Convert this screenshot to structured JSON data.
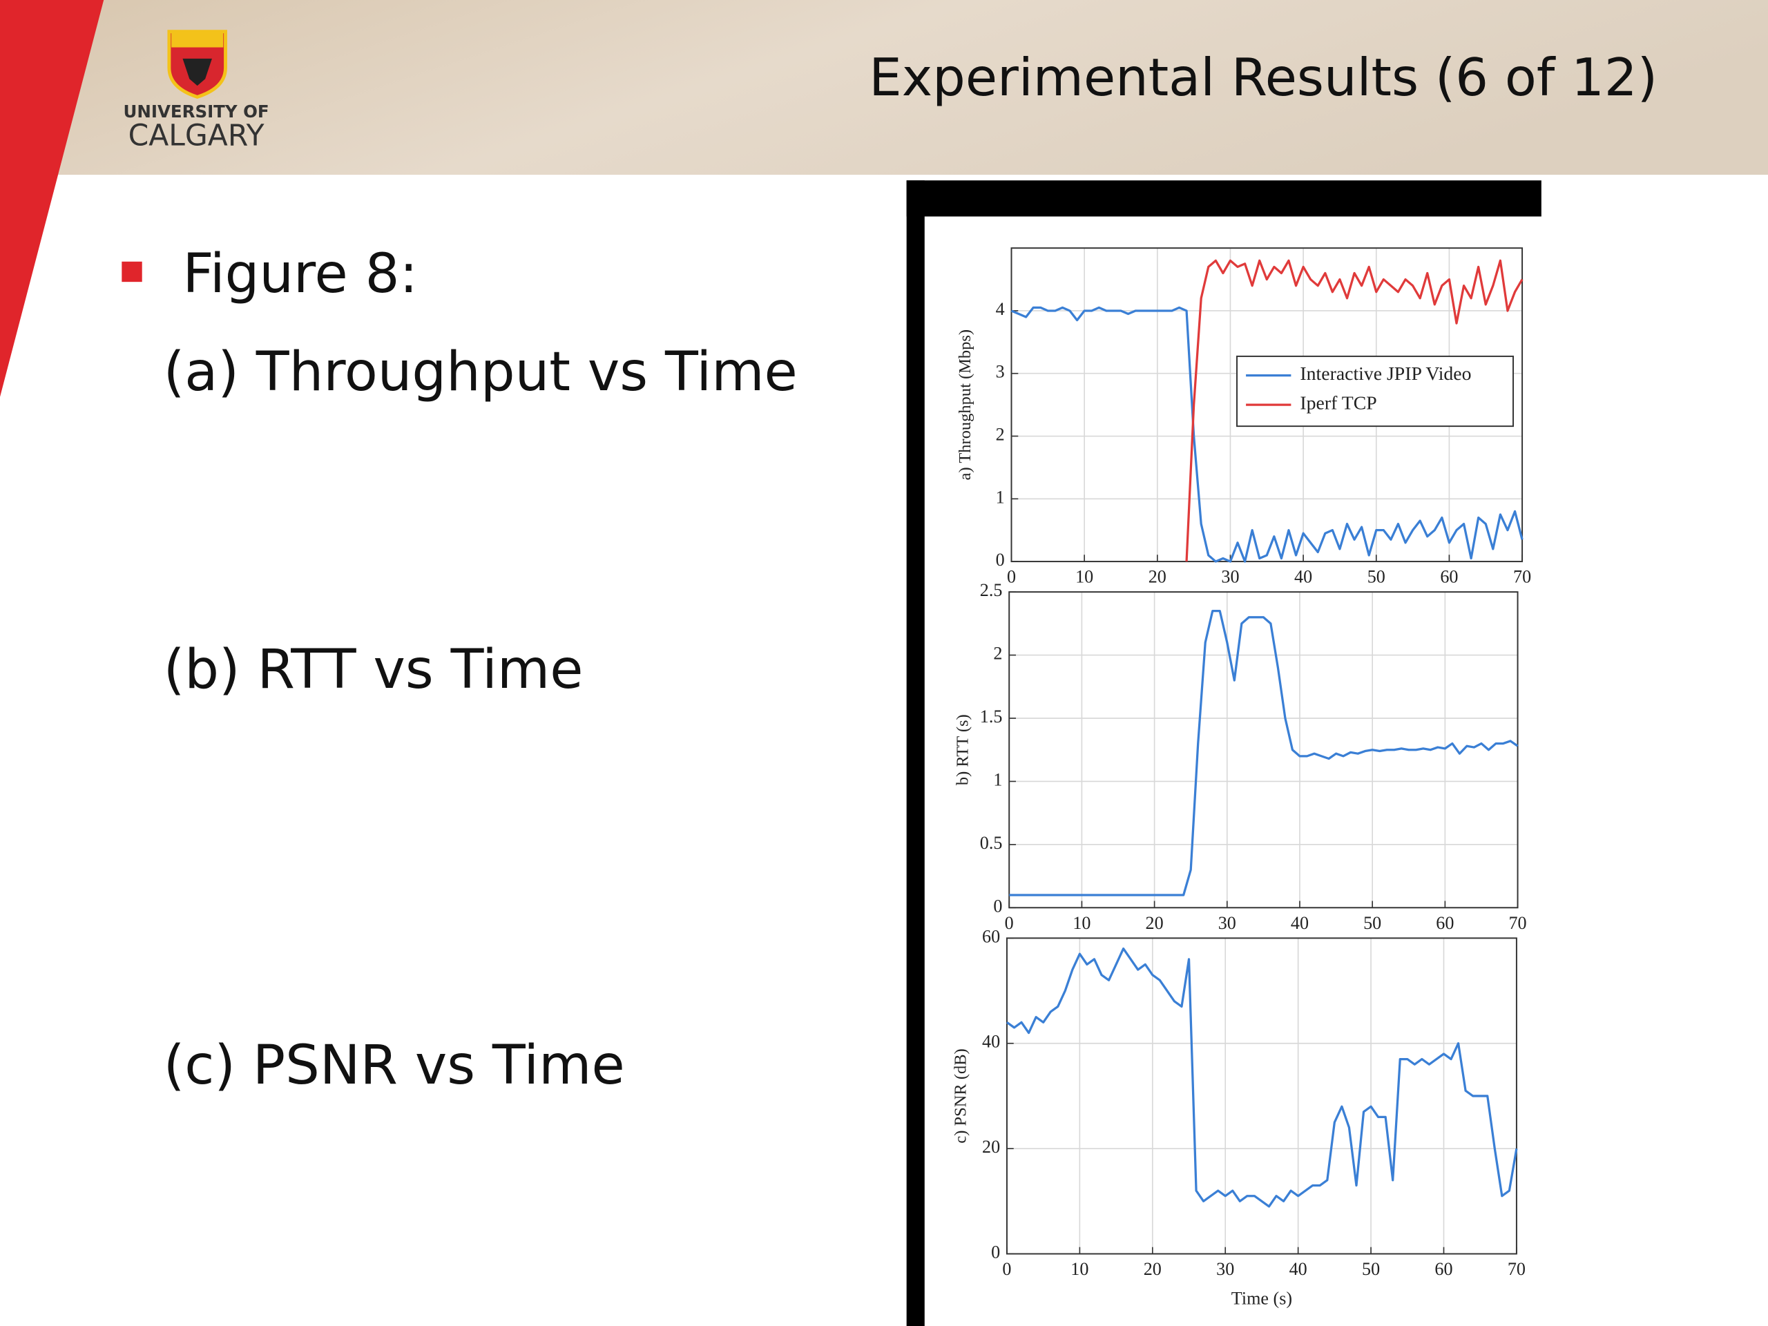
{
  "header": {
    "title": "Experimental Results (6 of 12)",
    "logo_line1": "UNIVERSITY OF",
    "logo_line2": "CALGARY"
  },
  "bullets": [
    "Figure 8:",
    "(a) Throughput vs Time",
    "(b) RTT vs Time",
    "(c) PSNR vs Time"
  ],
  "chart_data": [
    {
      "type": "line",
      "ylabel": "a) Throughput (Mbps)",
      "x": [
        0,
        1,
        2,
        3,
        4,
        5,
        6,
        7,
        8,
        9,
        10,
        11,
        12,
        13,
        14,
        15,
        16,
        17,
        18,
        19,
        20,
        21,
        22,
        23,
        24,
        25,
        26,
        27,
        28,
        29,
        30,
        31,
        32,
        33,
        34,
        35,
        36,
        37,
        38,
        39,
        40,
        41,
        42,
        43,
        44,
        45,
        46,
        47,
        48,
        49,
        50,
        51,
        52,
        53,
        54,
        55,
        56,
        57,
        58,
        59,
        60,
        61,
        62,
        63,
        64,
        65,
        66,
        67,
        68,
        69,
        70
      ],
      "xlim": [
        0,
        70
      ],
      "xticks": [
        0,
        10,
        20,
        30,
        40,
        50,
        60,
        70
      ],
      "ylim": [
        0,
        5
      ],
      "yticks": [
        0,
        1,
        2,
        3,
        4
      ],
      "grid": true,
      "legend": "center right",
      "series": [
        {
          "name": "Interactive JPIP Video",
          "color": "#3a7fd5",
          "values": [
            4.0,
            3.95,
            3.9,
            4.05,
            4.05,
            4.0,
            4.0,
            4.05,
            4.0,
            3.85,
            4.0,
            4.0,
            4.05,
            4.0,
            4.0,
            4.0,
            3.95,
            4.0,
            4.0,
            4.0,
            4.0,
            4.0,
            4.0,
            4.05,
            4.0,
            2.0,
            0.6,
            0.1,
            0.0,
            0.05,
            0.0,
            0.3,
            0.0,
            0.5,
            0.05,
            0.1,
            0.4,
            0.05,
            0.5,
            0.1,
            0.45,
            0.3,
            0.15,
            0.45,
            0.5,
            0.2,
            0.6,
            0.35,
            0.55,
            0.1,
            0.5,
            0.5,
            0.35,
            0.6,
            0.3,
            0.5,
            0.65,
            0.4,
            0.5,
            0.7,
            0.3,
            0.5,
            0.6,
            0.05,
            0.7,
            0.6,
            0.2,
            0.75,
            0.5,
            0.8,
            0.35
          ]
        },
        {
          "name": "Iperf TCP",
          "color": "#e03a3a",
          "values": [
            null,
            null,
            null,
            null,
            null,
            null,
            null,
            null,
            null,
            null,
            null,
            null,
            null,
            null,
            null,
            null,
            null,
            null,
            null,
            null,
            null,
            null,
            null,
            null,
            0,
            2.5,
            4.2,
            4.7,
            4.8,
            4.6,
            4.8,
            4.7,
            4.75,
            4.4,
            4.8,
            4.5,
            4.7,
            4.6,
            4.8,
            4.4,
            4.7,
            4.5,
            4.4,
            4.6,
            4.3,
            4.5,
            4.2,
            4.6,
            4.4,
            4.7,
            4.3,
            4.5,
            4.4,
            4.3,
            4.5,
            4.4,
            4.2,
            4.6,
            4.1,
            4.4,
            4.5,
            3.8,
            4.4,
            4.2,
            4.7,
            4.1,
            4.4,
            4.8,
            4.0,
            4.3,
            4.5
          ]
        }
      ]
    },
    {
      "type": "line",
      "ylabel": "b) RTT (s)",
      "x": [
        0,
        1,
        2,
        3,
        4,
        5,
        6,
        7,
        8,
        9,
        10,
        11,
        12,
        13,
        14,
        15,
        16,
        17,
        18,
        19,
        20,
        21,
        22,
        23,
        24,
        25,
        26,
        27,
        28,
        29,
        30,
        31,
        32,
        33,
        34,
        35,
        36,
        37,
        38,
        39,
        40,
        41,
        42,
        43,
        44,
        45,
        46,
        47,
        48,
        49,
        50,
        51,
        52,
        53,
        54,
        55,
        56,
        57,
        58,
        59,
        60,
        61,
        62,
        63,
        64,
        65,
        66,
        67,
        68,
        69,
        70
      ],
      "xlim": [
        0,
        70
      ],
      "xticks": [
        0,
        10,
        20,
        30,
        40,
        50,
        60,
        70
      ],
      "ylim": [
        0,
        2.5
      ],
      "yticks": [
        0,
        0.5,
        1,
        1.5,
        2,
        2.5
      ],
      "grid": true,
      "series": [
        {
          "color": "#3a7fd5",
          "values": [
            0.1,
            0.1,
            0.1,
            0.1,
            0.1,
            0.1,
            0.1,
            0.1,
            0.1,
            0.1,
            0.1,
            0.1,
            0.1,
            0.1,
            0.1,
            0.1,
            0.1,
            0.1,
            0.1,
            0.1,
            0.1,
            0.1,
            0.1,
            0.1,
            0.1,
            0.3,
            1.3,
            2.1,
            2.35,
            2.35,
            2.1,
            1.8,
            2.25,
            2.3,
            2.3,
            2.3,
            2.25,
            1.9,
            1.5,
            1.25,
            1.2,
            1.2,
            1.22,
            1.2,
            1.18,
            1.22,
            1.2,
            1.23,
            1.22,
            1.24,
            1.25,
            1.24,
            1.25,
            1.25,
            1.26,
            1.25,
            1.25,
            1.26,
            1.25,
            1.27,
            1.26,
            1.3,
            1.22,
            1.28,
            1.27,
            1.3,
            1.25,
            1.3,
            1.3,
            1.32,
            1.28
          ]
        }
      ]
    },
    {
      "type": "line",
      "ylabel": "c) PSNR (dB)",
      "xlabel": "Time (s)",
      "x": [
        0,
        1,
        2,
        3,
        4,
        5,
        6,
        7,
        8,
        9,
        10,
        11,
        12,
        13,
        14,
        15,
        16,
        17,
        18,
        19,
        20,
        21,
        22,
        23,
        24,
        25,
        26,
        27,
        28,
        29,
        30,
        31,
        32,
        33,
        34,
        35,
        36,
        37,
        38,
        39,
        40,
        41,
        42,
        43,
        44,
        45,
        46,
        47,
        48,
        49,
        50,
        51,
        52,
        53,
        54,
        55,
        56,
        57,
        58,
        59,
        60,
        61,
        62,
        63,
        64,
        65,
        66,
        67,
        68,
        69,
        70
      ],
      "xlim": [
        0,
        70
      ],
      "xticks": [
        0,
        10,
        20,
        30,
        40,
        50,
        60,
        70
      ],
      "ylim": [
        0,
        60
      ],
      "yticks": [
        0,
        20,
        40,
        60
      ],
      "grid": true,
      "series": [
        {
          "color": "#3a7fd5",
          "values": [
            44,
            43,
            44,
            42,
            45,
            44,
            46,
            47,
            50,
            54,
            57,
            55,
            56,
            53,
            52,
            55,
            58,
            56,
            54,
            55,
            53,
            52,
            50,
            48,
            47,
            56,
            12,
            10,
            11,
            12,
            11,
            12,
            10,
            11,
            11,
            10,
            9,
            11,
            10,
            12,
            11,
            12,
            13,
            13,
            14,
            25,
            28,
            24,
            13,
            27,
            28,
            26,
            26,
            14,
            37,
            37,
            36,
            37,
            36,
            37,
            38,
            37,
            40,
            31,
            30,
            30,
            30,
            20,
            11,
            12,
            20
          ]
        }
      ]
    }
  ]
}
